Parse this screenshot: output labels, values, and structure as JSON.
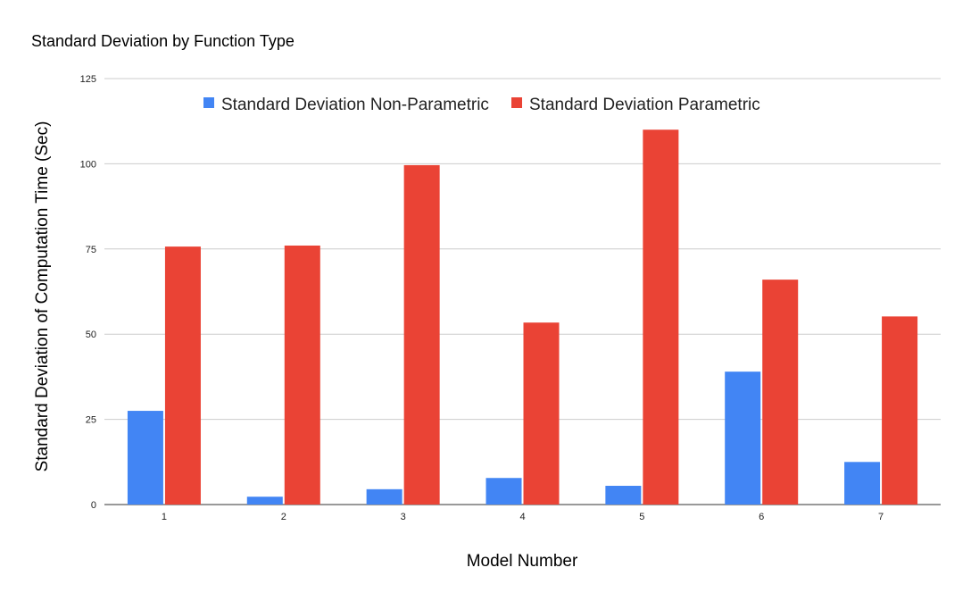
{
  "chart_data": {
    "type": "bar",
    "title": "Standard Deviation by Function Type",
    "xlabel": "Model Number",
    "ylabel": "Standard Deviation of Computation Time (Sec)",
    "categories": [
      "1",
      "2",
      "3",
      "4",
      "5",
      "6",
      "7"
    ],
    "series": [
      {
        "name": "Standard Deviation Non-Parametric",
        "color": "#4285f4",
        "values": [
          27.5,
          2.3,
          4.5,
          7.8,
          5.5,
          39,
          12.5
        ]
      },
      {
        "name": "Standard Deviation Parametric",
        "color": "#ea4335",
        "values": [
          75.7,
          76,
          99.6,
          53.4,
          110,
          66,
          55.2
        ]
      }
    ],
    "ylim": [
      0,
      125
    ],
    "yticks": [
      0,
      25,
      50,
      75,
      100,
      125
    ],
    "grid": true,
    "legend_position": "top"
  }
}
